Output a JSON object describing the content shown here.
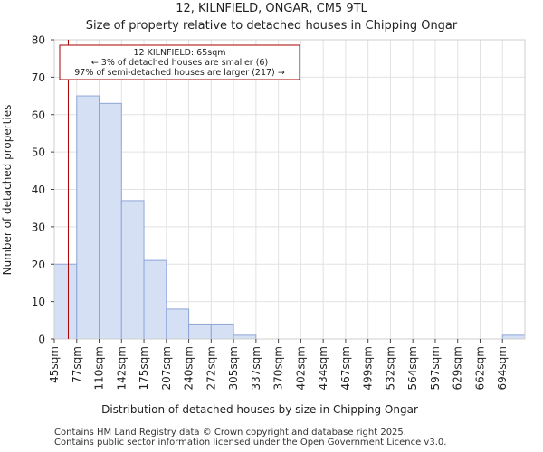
{
  "chart_data": {
    "type": "bar",
    "title": "12, KILNFIELD, ONGAR, CM5 9TL",
    "subtitle": "Size of property relative to detached houses in Chipping Ongar",
    "xlabel": "Distribution of detached houses by size in Chipping Ongar",
    "ylabel": "Number of detached properties",
    "categories": [
      "45sqm",
      "77sqm",
      "110sqm",
      "142sqm",
      "175sqm",
      "207sqm",
      "240sqm",
      "272sqm",
      "305sqm",
      "337sqm",
      "370sqm",
      "402sqm",
      "434sqm",
      "467sqm",
      "499sqm",
      "532sqm",
      "564sqm",
      "597sqm",
      "629sqm",
      "662sqm",
      "694sqm"
    ],
    "values": [
      20,
      65,
      63,
      37,
      21,
      8,
      4,
      4,
      1,
      0,
      0,
      0,
      0,
      0,
      0,
      0,
      0,
      0,
      0,
      0,
      1
    ],
    "ylim": [
      0,
      80
    ],
    "yticks": [
      0,
      10,
      20,
      30,
      40,
      50,
      60,
      70,
      80
    ],
    "grid": true,
    "bar_color": "#d6e0f5",
    "bar_edge_color": "#8ea6d8",
    "marker": {
      "value_sqm": 65,
      "color": "#aa0000",
      "annotation": [
        "12 KILNFIELD: 65sqm",
        "← 3% of detached houses are smaller (6)",
        "97% of semi-detached houses are larger (217) →"
      ]
    }
  },
  "footer": {
    "line1": "Contains HM Land Registry data © Crown copyright and database right 2025.",
    "line2": "Contains public sector information licensed under the Open Government Licence v3.0."
  }
}
